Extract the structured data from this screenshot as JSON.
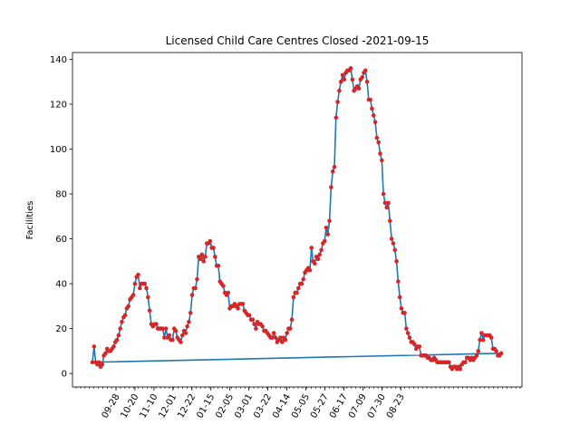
{
  "chart_data": {
    "type": "line",
    "title": "Licensed Child Care Centres Closed -2021-09-15",
    "xlabel": "",
    "ylabel": "Facilities",
    "ylim": [
      -6,
      143
    ],
    "yticks": [
      0,
      20,
      40,
      60,
      80,
      100,
      120,
      140
    ],
    "xticks": [
      "09-28",
      "10-20",
      "11-10",
      "12-01",
      "12-22",
      "01-15",
      "02-05",
      "03-01",
      "03-22",
      "04-14",
      "05-05",
      "05-27",
      "06-17",
      "07-09",
      "07-30",
      "08-23"
    ],
    "grid": false,
    "legend": "none",
    "line_color": "#1f77b4",
    "marker_color": "#d62728",
    "note": "Series connects last point back to first point (return line), as drawn in the original.",
    "series": [
      {
        "values": [
          5,
          12,
          5,
          4,
          5,
          3,
          4,
          8,
          9,
          11,
          10,
          10,
          11,
          12,
          14,
          15,
          17,
          20,
          23,
          25,
          26,
          29,
          30,
          33,
          34,
          35,
          40,
          43,
          44,
          38,
          40,
          40,
          40,
          38,
          34,
          28,
          22,
          21,
          22,
          22,
          20,
          20,
          20,
          20,
          16,
          20,
          16,
          17,
          15,
          15,
          20,
          19,
          16,
          15,
          14,
          17,
          19,
          18,
          21,
          23,
          27,
          35,
          38,
          38,
          42,
          52,
          51,
          53,
          50,
          52,
          58,
          58,
          59,
          56,
          56,
          52,
          48,
          48,
          41,
          40,
          39,
          36,
          35,
          36,
          29,
          30,
          30,
          31,
          30,
          29,
          31,
          31,
          31,
          28,
          27,
          26,
          26,
          24,
          24,
          22,
          20,
          23,
          22,
          22,
          21,
          19,
          19,
          18,
          17,
          16,
          16,
          18,
          16,
          14,
          15,
          16,
          14,
          16,
          15,
          18,
          20,
          20,
          24,
          34,
          36,
          36,
          38,
          40,
          40,
          42,
          45,
          46,
          47,
          46,
          56,
          50,
          49,
          52,
          51,
          53,
          55,
          58,
          59,
          65,
          62,
          68,
          83,
          90,
          92,
          114,
          121,
          126,
          130,
          133,
          131,
          134,
          135,
          135,
          136,
          131,
          126,
          127,
          128,
          127,
          131,
          132,
          134,
          135,
          130,
          122,
          122,
          118,
          115,
          112,
          105,
          103,
          98,
          95,
          80,
          76,
          74,
          76,
          68,
          60,
          58,
          55,
          50,
          41,
          34,
          29,
          27,
          27,
          20,
          18,
          16,
          14,
          14,
          13,
          11,
          12,
          12,
          8,
          8,
          8,
          8,
          7,
          7,
          6,
          6,
          7,
          6,
          5,
          5,
          5,
          5,
          5,
          5,
          5,
          5,
          3,
          2,
          3,
          3,
          2,
          3,
          2,
          4,
          5,
          5,
          7,
          7,
          6,
          7,
          6,
          7,
          8,
          10,
          15,
          18,
          15,
          17,
          17,
          17,
          17,
          16,
          11,
          11,
          10,
          8,
          8,
          9
        ]
      }
    ]
  }
}
